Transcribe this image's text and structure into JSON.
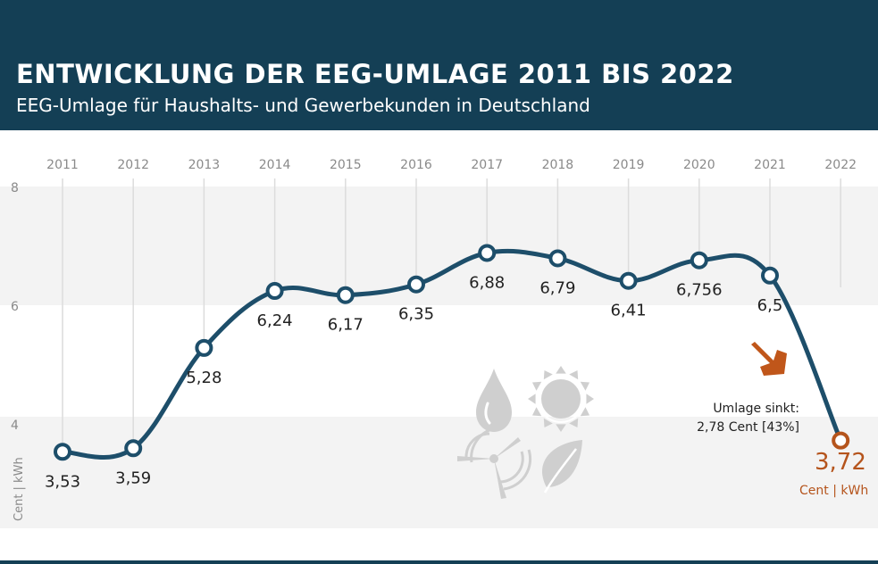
{
  "header": {
    "title": "ENTWICKLUNG DER EEG-UMLAGE 2011 BIS 2022",
    "subtitle": "EEG-Umlage für Haushalts- und Gewerbekunden in Deutschland"
  },
  "annotation": {
    "line1": "Umlage sinkt:",
    "line2": "2,78 Cent [43%]"
  },
  "final": {
    "value": "3,72",
    "unit": "Cent | kWh"
  },
  "icons": [
    "water-drop-icon",
    "sun-icon",
    "wind-turbine-icon",
    "leaf-icon",
    "arrow-down-icon"
  ],
  "colors": {
    "header_bg": "#143f55",
    "line": "#1d4e6a",
    "accent": "#b5541c",
    "band": "#f3f3f3"
  },
  "chart_data": {
    "type": "line",
    "x": [
      "2011",
      "2012",
      "2013",
      "2014",
      "2015",
      "2016",
      "2017",
      "2018",
      "2019",
      "2020",
      "2021",
      "2022"
    ],
    "values": [
      3.53,
      3.59,
      5.28,
      6.24,
      6.17,
      6.35,
      6.88,
      6.79,
      6.41,
      6.756,
      6.5,
      3.72
    ],
    "labels": [
      "3,53",
      "3,59",
      "5,28",
      "6,24",
      "6,17",
      "6,35",
      "6,88",
      "6,79",
      "6,41",
      "6,756",
      "6,5",
      "3,72"
    ],
    "ylabel": "Cent | kWh",
    "yticks": [
      "8",
      "6",
      "4"
    ],
    "ylim": [
      2.1,
      8
    ],
    "grid": "alternating horizontal bands with vertical year lines",
    "highlight_last": true
  }
}
